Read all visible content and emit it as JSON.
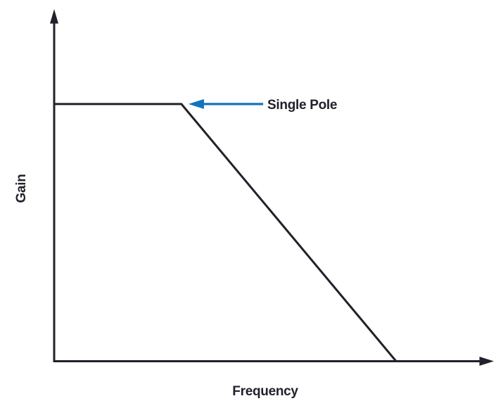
{
  "colors": {
    "background": "#ffffff",
    "axis": "#22202a",
    "text": "#22202a",
    "curve": "#22202a",
    "accent_blue": "#1373bc"
  },
  "chart_data": {
    "type": "line",
    "title": "",
    "xlabel": "Frequency",
    "ylabel": "Gain",
    "x_ticks": [],
    "y_ticks": [],
    "grid": false,
    "legend": false,
    "axis_style": "unlabeled conceptual axes with arrowheads (gain vs frequency sketch)",
    "series": [
      {
        "name": "gain-frequency-response",
        "color": "#22202a",
        "points": [
          {
            "x": 0.0,
            "y": 0.732,
            "desc": "flat passband gain at left axis"
          },
          {
            "x": 0.288,
            "y": 0.732,
            "desc": "pole corner (knee) where roll-off begins"
          },
          {
            "x": 0.774,
            "y": 0.0,
            "desc": "roll-off reaches zero gain on frequency axis"
          }
        ]
      }
    ],
    "annotations": [
      {
        "text": "Single Pole",
        "arrow_color": "#1373bc",
        "points_to": {
          "x": 0.304,
          "y": 0.732
        },
        "tail": {
          "x": 0.473,
          "y": 0.732
        }
      }
    ]
  }
}
